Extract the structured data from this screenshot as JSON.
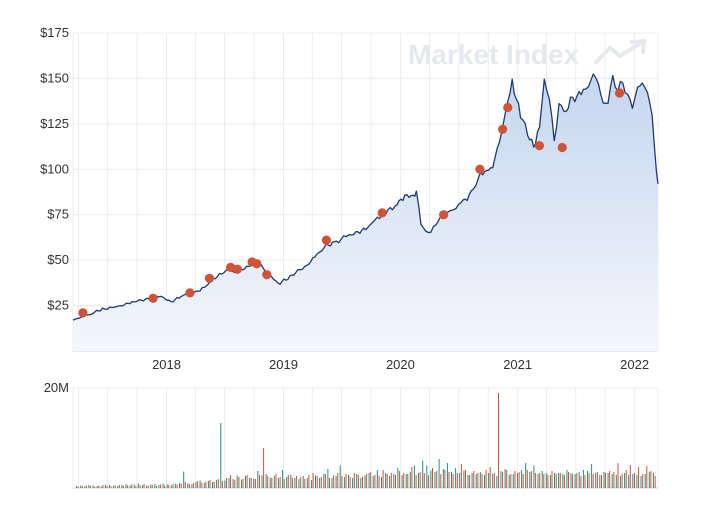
{
  "watermark": "Market Index",
  "chart_data": [
    {
      "type": "area",
      "title": "",
      "xlabel": "",
      "ylabel": "",
      "ylim": [
        0,
        175
      ],
      "xlim": [
        "2017-03-15",
        "2022-03-15"
      ],
      "y_ticks": [
        {
          "value": 25,
          "label": "$25"
        },
        {
          "value": 50,
          "label": "$50"
        },
        {
          "value": 75,
          "label": "$75"
        },
        {
          "value": 100,
          "label": "$100"
        },
        {
          "value": 125,
          "label": "$125"
        },
        {
          "value": 150,
          "label": "$150"
        },
        {
          "value": 175,
          "label": "$175"
        }
      ],
      "x_ticks": [
        {
          "value": "2018-01-01",
          "label": "2018"
        },
        {
          "value": "2019-01-01",
          "label": "2019"
        },
        {
          "value": "2020-01-01",
          "label": "2020"
        },
        {
          "value": "2021-01-01",
          "label": "2021"
        },
        {
          "value": "2022-01-01",
          "label": "2022"
        }
      ],
      "grid": true,
      "colors": {
        "line": "#1f3a70",
        "fill_top": "#c5d6ef",
        "fill_bottom": "#f4f7fc",
        "marker": "#cf5239",
        "grid": "#ececf0"
      },
      "series": [
        {
          "x": [
            "2017-03-15",
            "2017-04-15",
            "2017-05-15",
            "2017-06-15",
            "2017-07-15",
            "2017-08-15",
            "2017-09-15",
            "2017-10-15",
            "2017-11-15",
            "2017-12-15",
            "2018-01-15",
            "2018-02-15",
            "2018-03-15",
            "2018-04-15",
            "2018-05-15",
            "2018-06-15",
            "2018-07-15",
            "2018-08-01",
            "2018-08-20",
            "2018-09-15",
            "2018-10-01",
            "2018-10-20",
            "2018-11-10",
            "2018-11-25",
            "2018-12-15",
            "2019-01-15",
            "2019-02-15",
            "2019-03-15",
            "2019-04-15",
            "2019-05-15",
            "2019-06-15",
            "2019-07-15",
            "2019-08-15",
            "2019-09-15",
            "2019-10-15",
            "2019-11-15",
            "2019-12-15",
            "2020-01-15",
            "2020-02-10",
            "2020-02-20",
            "2020-03-05",
            "2020-03-20",
            "2020-04-05",
            "2020-04-20",
            "2020-05-15",
            "2020-06-15",
            "2020-07-15",
            "2020-08-15",
            "2020-09-01",
            "2020-09-20",
            "2020-10-15",
            "2020-11-05",
            "2020-11-25",
            "2020-12-15",
            "2021-01-10",
            "2021-02-01",
            "2021-02-20",
            "2021-03-10",
            "2021-03-25",
            "2021-04-10",
            "2021-04-25",
            "2021-05-10",
            "2021-05-25",
            "2021-06-15",
            "2021-07-05",
            "2021-07-25",
            "2021-08-10",
            "2021-08-25",
            "2021-09-10",
            "2021-09-25",
            "2021-10-10",
            "2021-10-25",
            "2021-11-10",
            "2021-11-25",
            "2021-12-10",
            "2021-12-25",
            "2022-01-10",
            "2022-01-25",
            "2022-02-10",
            "2022-02-25",
            "2022-03-10",
            "2022-03-15"
          ],
          "y": [
            17,
            19,
            21,
            23,
            24,
            25,
            27,
            28,
            29,
            30,
            27,
            30,
            32,
            33,
            38,
            42,
            45,
            44,
            45,
            46,
            49,
            48,
            43,
            41,
            37,
            40,
            44,
            47,
            53,
            58,
            60,
            63,
            65,
            67,
            72,
            76,
            80,
            85,
            86,
            87,
            71,
            65,
            66,
            70,
            75,
            78,
            82,
            88,
            96,
            98,
            102,
            115,
            132,
            148,
            130,
            120,
            112,
            124,
            148,
            140,
            115,
            136,
            130,
            138,
            140,
            143,
            146,
            152,
            148,
            135,
            138,
            150,
            144,
            148,
            140,
            135,
            144,
            148,
            142,
            130,
            98,
            92
          ]
        }
      ],
      "markers": [
        {
          "x": "2017-04-15",
          "y": 21
        },
        {
          "x": "2017-11-20",
          "y": 29
        },
        {
          "x": "2018-03-15",
          "y": 32
        },
        {
          "x": "2018-05-15",
          "y": 40
        },
        {
          "x": "2018-07-20",
          "y": 46
        },
        {
          "x": "2018-08-10",
          "y": 45
        },
        {
          "x": "2018-09-25",
          "y": 49
        },
        {
          "x": "2018-10-10",
          "y": 48
        },
        {
          "x": "2018-11-10",
          "y": 42
        },
        {
          "x": "2019-05-15",
          "y": 61
        },
        {
          "x": "2019-11-05",
          "y": 76
        },
        {
          "x": "2020-05-15",
          "y": 75
        },
        {
          "x": "2020-09-05",
          "y": 100
        },
        {
          "x": "2020-11-15",
          "y": 122
        },
        {
          "x": "2020-12-01",
          "y": 134
        },
        {
          "x": "2021-03-10",
          "y": 113
        },
        {
          "x": "2021-05-20",
          "y": 112
        },
        {
          "x": "2021-11-15",
          "y": 142
        }
      ]
    },
    {
      "type": "bar",
      "title": "",
      "ylabel": "",
      "ylim": [
        0,
        20
      ],
      "y_ticks": [
        {
          "value": 20,
          "label": "20M"
        }
      ],
      "colors": {
        "up": "#2b8c80",
        "down": "#cf5239"
      },
      "up_values": [
        0.4,
        0.5,
        0.3,
        0.6,
        0.5,
        0.4,
        0.3,
        0.7,
        0.6,
        0.5,
        0.4,
        0.6,
        0.8,
        0.5,
        0.7,
        0.9,
        0.6,
        0.5,
        0.7,
        0.8,
        0.6,
        0.9,
        0.7,
        0.5,
        0.8,
        1.0,
        3.3,
        0.9,
        0.8,
        1.2,
        1.5,
        1.0,
        1.4,
        1.2,
        1.6,
        13.0,
        1.5,
        2.0,
        1.8,
        2.5,
        1.7,
        2.4,
        2.0,
        1.8,
        3.4,
        2.5,
        2.8,
        2.1,
        2.4,
        2.0,
        3.6,
        2.2,
        2.6,
        2.0,
        1.8,
        2.4,
        2.0,
        1.6,
        2.5,
        2.0,
        2.8,
        3.8,
        2.0,
        2.4,
        4.5,
        2.2,
        2.6,
        2.0,
        2.8,
        2.0,
        2.5,
        3.0,
        2.4,
        3.6,
        2.2,
        3.0,
        2.4,
        2.8,
        4.0,
        2.6,
        2.8,
        3.2,
        4.5,
        3.0,
        5.5,
        4.5,
        3.5,
        3.2,
        5.8,
        3.8,
        5.0,
        3.2,
        4.0,
        3.0,
        3.5,
        2.6,
        3.0,
        2.8,
        3.2,
        2.6,
        3.0,
        2.8,
        2.4,
        3.4,
        3.8,
        2.6,
        2.8,
        3.0,
        3.6,
        5.0,
        3.2,
        4.5,
        2.8,
        3.4,
        3.0,
        2.6,
        3.0,
        3.0,
        2.8,
        3.6,
        3.0,
        2.8,
        3.2,
        3.6,
        3.4,
        4.8,
        3.0,
        2.6,
        3.2,
        3.0,
        2.8,
        2.6,
        2.4,
        3.0,
        2.6,
        2.8,
        2.6,
        2.4,
        2.8,
        3.2,
        3.0
      ],
      "down_values": [
        0.3,
        0.4,
        0.5,
        0.4,
        0.3,
        0.5,
        0.6,
        0.4,
        0.3,
        0.5,
        0.6,
        0.4,
        0.5,
        0.7,
        0.4,
        0.6,
        0.8,
        0.5,
        0.6,
        0.4,
        0.7,
        0.5,
        0.6,
        0.8,
        0.7,
        0.9,
        1.2,
        0.8,
        1.0,
        1.4,
        1.1,
        1.3,
        1.6,
        1.2,
        1.8,
        1.4,
        2.0,
        2.6,
        1.6,
        2.2,
        1.8,
        2.6,
        2.0,
        1.8,
        2.6,
        8.0,
        2.4,
        2.0,
        2.8,
        2.2,
        1.8,
        2.6,
        2.0,
        2.4,
        2.2,
        1.8,
        2.6,
        3.0,
        2.4,
        2.2,
        2.8,
        2.0,
        2.6,
        3.0,
        2.4,
        2.8,
        2.2,
        3.0,
        2.6,
        2.2,
        2.8,
        3.2,
        2.6,
        2.4,
        3.6,
        2.8,
        3.0,
        2.6,
        3.4,
        3.0,
        2.8,
        4.2,
        2.6,
        3.2,
        3.0,
        2.6,
        4.0,
        3.4,
        2.8,
        3.6,
        3.2,
        2.8,
        3.0,
        4.8,
        3.6,
        2.6,
        3.4,
        3.0,
        2.8,
        3.6,
        4.2,
        3.0,
        19.0,
        3.2,
        3.6,
        2.8,
        3.4,
        3.2,
        2.8,
        3.6,
        3.4,
        3.0,
        3.0,
        2.8,
        2.6,
        3.4,
        2.8,
        3.0,
        2.6,
        3.2,
        2.8,
        3.0,
        2.4,
        2.6,
        3.0,
        2.8,
        3.2,
        2.6,
        3.0,
        3.4,
        3.2,
        5.0,
        2.8,
        3.6,
        4.6,
        3.0,
        4.2,
        2.8,
        4.4,
        3.4,
        2.4
      ]
    }
  ]
}
